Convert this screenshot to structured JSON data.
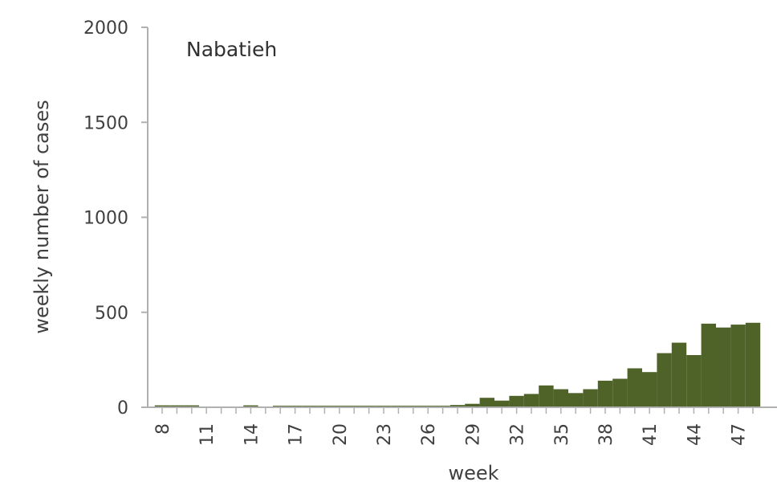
{
  "chart_data": {
    "type": "bar",
    "title": "Nabatieh",
    "xlabel": "week",
    "ylabel": "weekly number of cases",
    "ylim": [
      0,
      2000
    ],
    "yticks": [
      0,
      500,
      1000,
      1500,
      2000
    ],
    "xtick_labels": [
      "8",
      "11",
      "14",
      "17",
      "20",
      "23",
      "26",
      "29",
      "32",
      "35",
      "38",
      "41",
      "44",
      "47"
    ],
    "weeks": [
      8,
      9,
      10,
      11,
      12,
      13,
      14,
      15,
      16,
      17,
      18,
      19,
      20,
      21,
      22,
      23,
      24,
      25,
      26,
      27,
      28,
      29,
      30,
      31,
      32,
      33,
      34,
      35,
      36,
      37,
      38,
      39,
      40,
      41,
      42,
      43,
      44,
      45,
      46,
      47,
      48
    ],
    "values": [
      10,
      10,
      10,
      0,
      0,
      0,
      10,
      0,
      8,
      8,
      8,
      8,
      8,
      8,
      8,
      8,
      8,
      8,
      8,
      8,
      12,
      18,
      50,
      35,
      60,
      70,
      115,
      95,
      75,
      95,
      140,
      150,
      205,
      185,
      285,
      340,
      275,
      440,
      420,
      435,
      445
    ],
    "bar_color": "#4f6228",
    "grid": false,
    "legend": "none"
  }
}
